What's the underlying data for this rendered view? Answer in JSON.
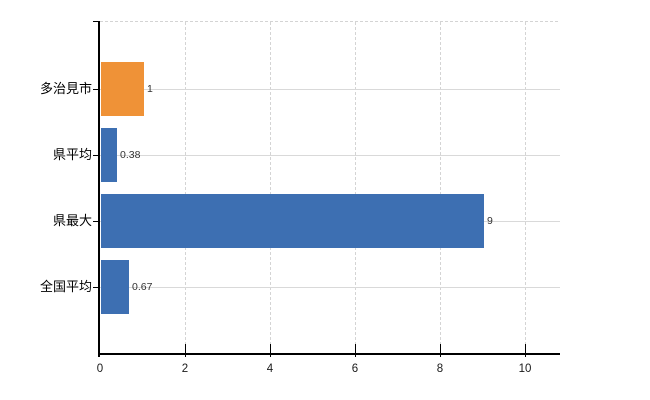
{
  "chart_data": {
    "type": "bar",
    "orientation": "horizontal",
    "title": "",
    "xlabel": "",
    "ylabel": "",
    "categories": [
      "多治見市",
      "県平均",
      "県最大",
      "全国平均"
    ],
    "values": [
      1,
      0.38,
      9,
      0.67
    ],
    "value_labels": [
      "1",
      "0.38",
      "9",
      "0.67"
    ],
    "series_colors": [
      "#ef9237",
      "#3d6fb2",
      "#3d6fb2",
      "#3d6fb2"
    ],
    "x_ticks": [
      "0",
      "2",
      "4",
      "6",
      "8",
      "10"
    ],
    "x_tick_values": [
      0,
      2,
      4,
      6,
      8,
      10
    ],
    "xlim": [
      0,
      10.8
    ],
    "grid": true,
    "legend": "none",
    "value_labels_shown": true
  },
  "colors": {
    "background": "#ffffff",
    "axis": "#000000",
    "gridline": "#d9d9d9",
    "gridline_dashed": "#d4d4d4",
    "bar_orange": "#ef9237",
    "bar_blue": "#3d6fb2",
    "category_label": "#000000",
    "value_label": "#333333",
    "tick_label": "#1a1a1a"
  }
}
